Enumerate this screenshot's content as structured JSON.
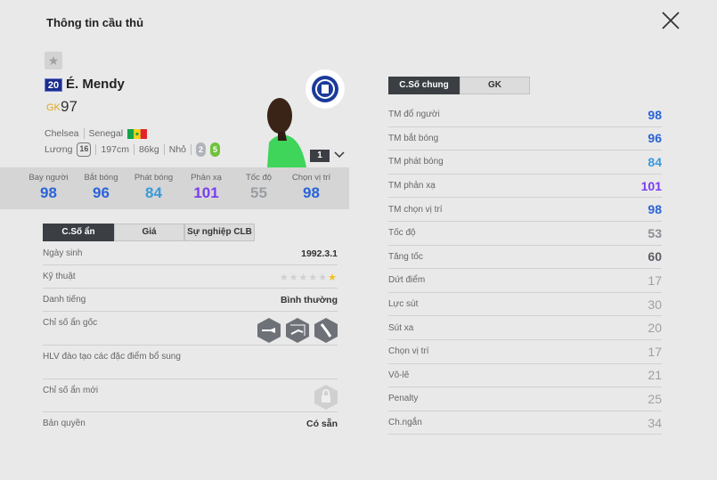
{
  "title": "Thông tin cầu thủ",
  "icons": {
    "close": "close-icon",
    "favorite": "star-icon",
    "expand": "chevron-down-icon",
    "lock": "lock-icon"
  },
  "player": {
    "number": "20",
    "name": "É. Mendy",
    "position": "GK",
    "overall": "97",
    "club": "Chelsea",
    "nation": "Senegal",
    "salary_label": "Lương",
    "salary": "16",
    "height": "197cm",
    "weight": "86kg",
    "body": "Nhỏ",
    "weak_foot": "2",
    "strong_foot": "5",
    "level": "1"
  },
  "colors": {
    "blue": "#2a63d8",
    "lightblue": "#3a9ad8",
    "purple": "#7a3cf0",
    "gray": "#999999",
    "gold": "#e0a81c"
  },
  "summary": [
    {
      "label": "Bay người",
      "value": "98",
      "color": "#2a63d8"
    },
    {
      "label": "Bắt bóng",
      "value": "96",
      "color": "#2a63d8"
    },
    {
      "label": "Phát bóng",
      "value": "84",
      "color": "#3a9ad8"
    },
    {
      "label": "Phản xạ",
      "value": "101",
      "color": "#7a3cf0"
    },
    {
      "label": "Tốc độ",
      "value": "55",
      "color": "#9a9ea4"
    },
    {
      "label": "Chọn vị trí",
      "value": "98",
      "color": "#2a63d8"
    }
  ],
  "left_tabs": [
    "C.Số ẩn",
    "Giá",
    "Sự nghiệp CLB"
  ],
  "info": {
    "birth_label": "Ngày sinh",
    "birth": "1992.3.1",
    "skill_label": "Kỹ thuật",
    "skill_stars": 1,
    "rep_label": "Danh tiếng",
    "rep": "Bình thường",
    "traits_label": "Chỉ số ẩn gốc",
    "coach_label": "HLV đào tạo các đặc điểm bổ sung",
    "new_traits_label": "Chỉ số ẩn mới",
    "license_label": "Bản quyền",
    "license": "Có sẵn"
  },
  "right_tabs": [
    "C.Số chung",
    "GK"
  ],
  "stats": [
    {
      "label": "TM đổ người",
      "value": "98",
      "color": "#2a63d8"
    },
    {
      "label": "TM bắt bóng",
      "value": "96",
      "color": "#2a63d8"
    },
    {
      "label": "TM phát bóng",
      "value": "84",
      "color": "#3a9ad8"
    },
    {
      "label": "TM phản xạ",
      "value": "101",
      "color": "#7a3cf0"
    },
    {
      "label": "TM chọn vị trí",
      "value": "98",
      "color": "#2a63d8"
    },
    {
      "label": "Tốc độ",
      "value": "53",
      "color": "#8a8e94"
    },
    {
      "label": "Tăng tốc",
      "value": "60",
      "color": "#5a5e64"
    },
    {
      "label": "Dứt điểm",
      "value": "17",
      "color": "#a0a0a0"
    },
    {
      "label": "Lực sút",
      "value": "30",
      "color": "#a0a0a0"
    },
    {
      "label": "Sút xa",
      "value": "20",
      "color": "#a0a0a0"
    },
    {
      "label": "Chọn vị trí",
      "value": "17",
      "color": "#a0a0a0"
    },
    {
      "label": "Vô-lê",
      "value": "21",
      "color": "#a0a0a0"
    },
    {
      "label": "Penalty",
      "value": "25",
      "color": "#a0a0a0"
    },
    {
      "label": "Ch.ngắn",
      "value": "34",
      "color": "#a0a0a0"
    }
  ]
}
